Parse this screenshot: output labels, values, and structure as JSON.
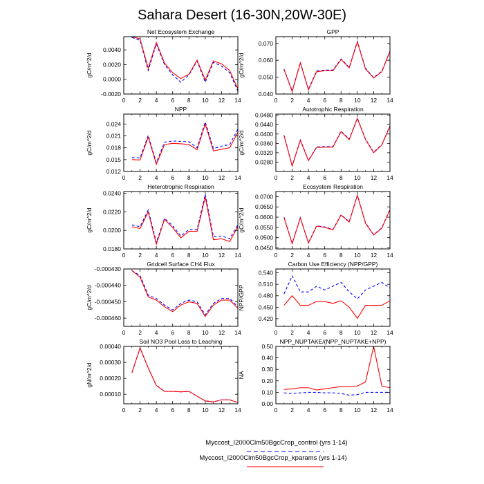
{
  "title": "Sahara Desert (16-30N,20W-30E)",
  "colors": {
    "control": "#0000ff",
    "kparams": "#ff0000",
    "axis": "#000000"
  },
  "legend": [
    {
      "label": "Myccost_I2000Clm50BgcCrop_control (yrs 1-14)",
      "color": "#0000ff",
      "dash": true
    },
    {
      "label": "Myccost_I2000Clm50BgcCrop_kparams (yrs 1-14)",
      "color": "#ff0000",
      "dash": false
    }
  ],
  "chart_data": [
    {
      "type": "line",
      "title": "Net Ecosystem Exchange",
      "ylabel": "gC/m^2/d",
      "x": [
        1,
        2,
        3,
        4,
        5,
        6,
        7,
        8,
        9,
        10,
        11,
        12,
        13,
        14
      ],
      "xlim": [
        0,
        14
      ],
      "xticks": [
        "0",
        "2",
        "4",
        "6",
        "8",
        "10",
        "12",
        "14"
      ],
      "ylim": [
        -0.002,
        0.0058
      ],
      "yticks": [
        "-0.0020",
        "0.0000",
        "0.0020",
        "0.0040"
      ],
      "series": [
        {
          "values": [
            0.0057,
            0.0053,
            0.0012,
            0.0048,
            0.002,
            0.0006,
            -0.0004,
            0.0006,
            0.0025,
            -0.0004,
            0.0023,
            0.0018,
            0.0009,
            -0.0016
          ]
        },
        {
          "values": [
            0.0058,
            0.0055,
            0.0015,
            0.005,
            0.0022,
            0.0009,
            0.0001,
            0.0007,
            0.0026,
            -0.0001,
            0.0025,
            0.0021,
            0.0012,
            -0.0013
          ]
        }
      ]
    },
    {
      "type": "line",
      "title": "GPP",
      "ylabel": "gC/m^2/d",
      "x": [
        1,
        2,
        3,
        4,
        5,
        6,
        7,
        8,
        9,
        10,
        11,
        12,
        13,
        14
      ],
      "xlim": [
        0,
        14
      ],
      "xticks": [
        "0",
        "2",
        "4",
        "6",
        "8",
        "10",
        "12",
        "14"
      ],
      "ylim": [
        0.04,
        0.074
      ],
      "yticks": [
        "0.040",
        "0.050",
        "0.060",
        "0.070"
      ],
      "series": [
        {
          "values": [
            0.0548,
            0.0418,
            0.0588,
            0.0428,
            0.0538,
            0.0542,
            0.0542,
            0.0608,
            0.0558,
            0.0712,
            0.0552,
            0.0498,
            0.0535,
            0.0655
          ]
        },
        {
          "values": [
            0.0545,
            0.0415,
            0.0585,
            0.0425,
            0.0532,
            0.0538,
            0.0538,
            0.0605,
            0.0555,
            0.0708,
            0.0548,
            0.0495,
            0.0532,
            0.0652
          ]
        }
      ]
    },
    {
      "type": "line",
      "title": "NPP",
      "ylabel": "gC/m^2/d",
      "x": [
        1,
        2,
        3,
        4,
        5,
        6,
        7,
        8,
        9,
        10,
        11,
        12,
        13,
        14
      ],
      "xlim": [
        0,
        14
      ],
      "xticks": [
        "0",
        "2",
        "4",
        "6",
        "8",
        "10",
        "12",
        "14"
      ],
      "ylim": [
        0.012,
        0.0265
      ],
      "yticks": [
        "0.012",
        "0.015",
        "0.018",
        "0.021",
        "0.024"
      ],
      "series": [
        {
          "values": [
            0.0155,
            0.0154,
            0.0211,
            0.0142,
            0.0194,
            0.0197,
            0.0196,
            0.0195,
            0.018,
            0.0245,
            0.0178,
            0.0184,
            0.0188,
            0.0227
          ]
        },
        {
          "values": [
            0.015,
            0.0149,
            0.0207,
            0.0138,
            0.0188,
            0.0191,
            0.019,
            0.0188,
            0.0175,
            0.024,
            0.0172,
            0.0176,
            0.018,
            0.0219
          ]
        }
      ]
    },
    {
      "type": "line",
      "title": "Autotrophic Respiration",
      "ylabel": "gC/m^2/d",
      "x": [
        1,
        2,
        3,
        4,
        5,
        6,
        7,
        8,
        9,
        10,
        11,
        12,
        13,
        14
      ],
      "xlim": [
        0,
        14
      ],
      "xticks": [
        "0",
        "2",
        "4",
        "6",
        "8",
        "10",
        "12",
        "14"
      ],
      "ylim": [
        0.024,
        0.0485
      ],
      "yticks": [
        "0.0280",
        "0.0320",
        "0.0360",
        "0.0400",
        "0.0440",
        "0.0480"
      ],
      "series": [
        {
          "values": [
            0.0395,
            0.0265,
            0.0375,
            0.0288,
            0.0345,
            0.0346,
            0.0346,
            0.0412,
            0.0378,
            0.0468,
            0.0378,
            0.0322,
            0.0355,
            0.0435
          ]
        },
        {
          "values": [
            0.0393,
            0.0263,
            0.0373,
            0.0286,
            0.0343,
            0.0344,
            0.0344,
            0.041,
            0.0376,
            0.0466,
            0.0376,
            0.032,
            0.0353,
            0.0433
          ]
        }
      ]
    },
    {
      "type": "line",
      "title": "Heterotrophic Respiration",
      "ylabel": "gC/m^2/d",
      "x": [
        1,
        2,
        3,
        4,
        5,
        6,
        7,
        8,
        9,
        10,
        11,
        12,
        13,
        14
      ],
      "xlim": [
        0,
        14
      ],
      "xticks": [
        "0",
        "2",
        "4",
        "6",
        "8",
        "10",
        "12",
        "14"
      ],
      "ylim": [
        0.018,
        0.0242
      ],
      "yticks": [
        "0.0180",
        "0.0200",
        "0.0220",
        "0.0240"
      ],
      "series": [
        {
          "values": [
            0.0206,
            0.0204,
            0.0222,
            0.0187,
            0.0213,
            0.0205,
            0.0194,
            0.0201,
            0.0201,
            0.0239,
            0.0193,
            0.0194,
            0.0191,
            0.0206
          ]
        },
        {
          "values": [
            0.0204,
            0.0202,
            0.022,
            0.0185,
            0.0212,
            0.0203,
            0.0192,
            0.0199,
            0.0199,
            0.0236,
            0.019,
            0.0191,
            0.0188,
            0.0204
          ]
        }
      ]
    },
    {
      "type": "line",
      "title": "Ecosystem Respiration",
      "ylabel": "gC/m^2/d",
      "x": [
        1,
        2,
        3,
        4,
        5,
        6,
        7,
        8,
        9,
        10,
        11,
        12,
        13,
        14
      ],
      "xlim": [
        0,
        14
      ],
      "xticks": [
        "0",
        "2",
        "4",
        "6",
        "8",
        "10",
        "12",
        "14"
      ],
      "ylim": [
        0.0445,
        0.0725
      ],
      "yticks": [
        "0.0450",
        "0.0500",
        "0.0550",
        "0.0600",
        "0.0650",
        "0.0700"
      ],
      "series": [
        {
          "values": [
            0.06,
            0.0472,
            0.0598,
            0.0475,
            0.0558,
            0.0552,
            0.054,
            0.0612,
            0.0578,
            0.0708,
            0.0572,
            0.0515,
            0.0548,
            0.0638
          ]
        },
        {
          "values": [
            0.0598,
            0.047,
            0.0596,
            0.0473,
            0.0556,
            0.055,
            0.0538,
            0.061,
            0.0576,
            0.0706,
            0.057,
            0.0513,
            0.0546,
            0.0636
          ]
        }
      ]
    },
    {
      "type": "line",
      "title": "Gridcell Surface CH4 Flux",
      "ylabel": "gC/m^2/d",
      "x": [
        1,
        2,
        3,
        4,
        5,
        6,
        7,
        8,
        9,
        10,
        11,
        12,
        13,
        14
      ],
      "xlim": [
        0,
        14
      ],
      "xticks": [
        "0",
        "2",
        "4",
        "6",
        "8",
        "10",
        "12",
        "14"
      ],
      "ylim": [
        -0.000465,
        -0.00043
      ],
      "yticks": [
        "-0.000460",
        "-0.000450",
        "-0.000440",
        "-0.000430"
      ],
      "series": [
        {
          "values": [
            -0.000431,
            -0.000434,
            -0.000446,
            -0.000448,
            -0.000452,
            -0.000455,
            -0.000451,
            -0.000449,
            -0.00045,
            -0.000458,
            -0.000451,
            -0.000448,
            -0.000448,
            -0.000453
          ]
        },
        {
          "values": [
            -0.000431,
            -0.000435,
            -0.000447,
            -0.000449,
            -0.000453,
            -0.000456,
            -0.000452,
            -0.00045,
            -0.000451,
            -0.000459,
            -0.000452,
            -0.000449,
            -0.000449,
            -0.000454
          ]
        }
      ]
    },
    {
      "type": "line",
      "title": "Carbon Use Efficiency (NPP/GPP)",
      "ylabel": "NPP/GPP",
      "x": [
        1,
        2,
        3,
        4,
        5,
        6,
        7,
        8,
        9,
        10,
        11,
        12,
        13,
        14
      ],
      "xlim": [
        0,
        14
      ],
      "xticks": [
        "0",
        "2",
        "4",
        "6",
        "8",
        "10",
        "12",
        "14"
      ],
      "ylim": [
        0.4,
        0.55
      ],
      "yticks": [
        "0.420",
        "0.450",
        "0.480",
        "0.510",
        "0.540"
      ],
      "series": [
        {
          "values": [
            0.485,
            0.532,
            0.49,
            0.49,
            0.505,
            0.495,
            0.505,
            0.515,
            0.49,
            0.472,
            0.495,
            0.505,
            0.515,
            0.5
          ]
        },
        {
          "values": [
            0.455,
            0.48,
            0.455,
            0.455,
            0.465,
            0.465,
            0.46,
            0.467,
            0.45,
            0.421,
            0.455,
            0.455,
            0.455,
            0.467
          ]
        }
      ]
    },
    {
      "type": "line",
      "title": "Soil NO3 Pool Loss to Leaching",
      "ylabel": "gN/m^2/d",
      "x": [
        1,
        2,
        3,
        4,
        5,
        6,
        7,
        8,
        9,
        10,
        11,
        12,
        13,
        14
      ],
      "xlim": [
        0,
        14
      ],
      "xticks": [
        "0",
        "2",
        "4",
        "6",
        "8",
        "10",
        "12",
        "14"
      ],
      "ylim": [
        4e-05,
        0.0004
      ],
      "yticks": [
        "0.00010",
        "0.00020",
        "0.00030",
        "0.00040"
      ],
      "series": [
        {
          "values": [
            0.000235,
            0.00039,
            0.000265,
            0.000155,
            0.000118,
            0.000118,
            0.000115,
            0.000118,
            8.8e-05,
            5.8e-05,
            5.2e-05,
            6.5e-05,
            6.5e-05,
            4.8e-05
          ]
        },
        {
          "values": [
            0.000235,
            0.00039,
            0.000265,
            0.000155,
            0.000118,
            0.000118,
            0.000115,
            0.000118,
            8.8e-05,
            5.8e-05,
            5.2e-05,
            6.5e-05,
            6.5e-05,
            4.8e-05
          ]
        }
      ]
    },
    {
      "type": "line",
      "title": "NPP_NUPTAKE/(NPP_NUPTAKE+NPP)",
      "ylabel": "NA",
      "x": [
        1,
        2,
        3,
        4,
        5,
        6,
        7,
        8,
        9,
        10,
        11,
        12,
        13,
        14
      ],
      "xlim": [
        0,
        14
      ],
      "xticks": [
        "0",
        "2",
        "4",
        "6",
        "8",
        "10",
        "12",
        "14"
      ],
      "ylim": [
        0,
        0.5
      ],
      "yticks": [
        "0.00",
        "0.10",
        "0.20",
        "0.30",
        "0.40",
        "0.50"
      ],
      "series": [
        {
          "values": [
            0.095,
            0.09,
            0.095,
            0.1,
            0.1,
            0.095,
            0.095,
            0.09,
            0.075,
            0.08,
            0.1,
            0.1,
            0.1,
            0.1
          ]
        },
        {
          "values": [
            0.125,
            0.13,
            0.14,
            0.14,
            0.12,
            0.13,
            0.14,
            0.15,
            0.15,
            0.155,
            0.19,
            0.5,
            0.155,
            0.14
          ]
        }
      ]
    }
  ]
}
